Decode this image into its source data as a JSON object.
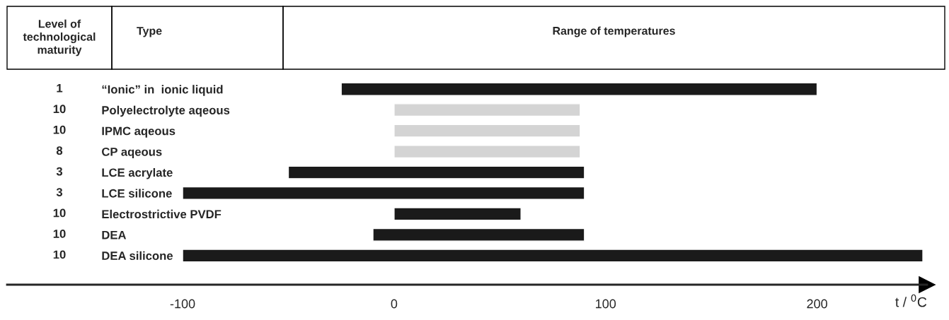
{
  "chart_data": {
    "type": "bar",
    "orientation": "horizontal",
    "categories": [
      "“Ionic” in  ionic liquid",
      "Polyelectrolyte aqeous",
      "IPMC aqeous",
      "CP aqeous",
      "LCE acrylate",
      "LCE silicone",
      "Electrostrictive PVDF",
      "DEA",
      "DEA silicone"
    ],
    "base": [
      -25,
      0,
      0,
      0,
      -50,
      -100,
      0,
      -10,
      -100
    ],
    "values": [
      225,
      88,
      88,
      88,
      140,
      190,
      60,
      100,
      350
    ],
    "colors": [
      "#1a1a1a",
      "#d4d4d4",
      "#d4d4d4",
      "#d4d4d4",
      "#1a1a1a",
      "#1a1a1a",
      "#1a1a1a",
      "#1a1a1a",
      "#1a1a1a"
    ],
    "xlim": [
      -183,
      252
    ],
    "xticks": [
      -100,
      0,
      100,
      200
    ],
    "xlabel": "t / $^{0}$C",
    "annotations": [
      "Level of technological maturity",
      "Type",
      "Range of temperatures",
      "1",
      "10",
      "10",
      "8",
      "3",
      "3",
      "10",
      "10",
      "10"
    ],
    "grid": false,
    "tick_labels": "x"
  }
}
